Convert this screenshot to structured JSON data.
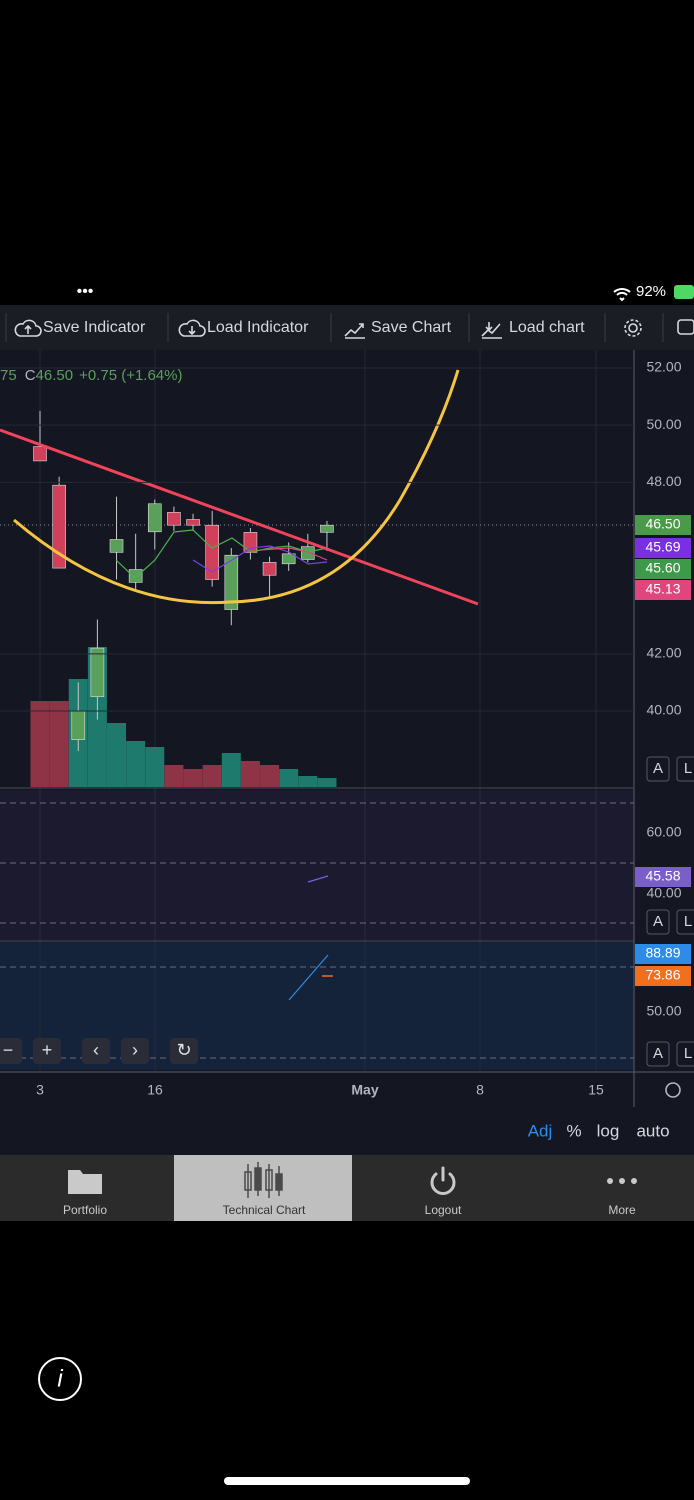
{
  "status_bar": {
    "dots": "•••",
    "battery": "92%"
  },
  "toolbar": [
    "Save Indicator",
    "Load Indicator",
    "Save Chart",
    "Load chart"
  ],
  "legend": {
    "prev": "75",
    "close_label": "C",
    "close": "46.50",
    "change": "+0.75 (+1.64%)"
  },
  "price_axis": {
    "ticks": [
      {
        "value": 52,
        "label": "52.00"
      },
      {
        "value": 50,
        "label": "50.00"
      },
      {
        "value": 48,
        "label": "48.00"
      },
      {
        "value": 42,
        "label": "42.00"
      },
      {
        "value": 40,
        "label": "40.00"
      }
    ],
    "badges": [
      "46.50",
      "45.69",
      "45.60",
      "45.13"
    ]
  },
  "candles": [
    {
      "open": 49.25,
      "high": 50.5,
      "low": 48.75,
      "close": 48.75
    },
    {
      "open": 47.9,
      "high": 48.2,
      "low": 45.0,
      "close": 45.0
    },
    {
      "open": 39.0,
      "high": 41.0,
      "low": 38.6,
      "close": 40.0
    },
    {
      "open": 40.5,
      "high": 43.2,
      "low": 39.7,
      "close": 42.2
    },
    {
      "open": 45.55,
      "high": 47.5,
      "low": 44.6,
      "close": 46.0
    },
    {
      "open": 44.5,
      "high": 46.2,
      "low": 44.25,
      "close": 44.95
    },
    {
      "open": 46.27,
      "high": 47.4,
      "low": 45.65,
      "close": 47.25
    },
    {
      "open": 46.95,
      "high": 47.15,
      "low": 46.3,
      "close": 46.5
    },
    {
      "open": 46.7,
      "high": 46.9,
      "low": 46.3,
      "close": 46.5
    },
    {
      "open": 46.5,
      "high": 47.0,
      "low": 44.35,
      "close": 44.6
    },
    {
      "open": 43.55,
      "high": 45.7,
      "low": 43.0,
      "close": 45.45
    },
    {
      "open": 46.25,
      "high": 46.4,
      "low": 45.3,
      "close": 45.55
    },
    {
      "open": 45.2,
      "high": 45.4,
      "low": 44.0,
      "close": 44.75
    },
    {
      "open": 45.15,
      "high": 45.9,
      "low": 44.9,
      "close": 45.5
    },
    {
      "open": 45.3,
      "high": 46.2,
      "low": 45.2,
      "close": 45.75
    },
    {
      "open": 46.25,
      "high": 46.65,
      "low": 45.6,
      "close": 46.5
    }
  ],
  "volume": [
    86,
    86,
    108,
    140,
    64,
    46,
    40,
    22,
    18,
    22,
    34,
    26,
    22,
    18,
    11,
    9
  ],
  "pane2": {
    "ticks": [
      "60.00",
      "40.00"
    ],
    "badge": "45.58"
  },
  "pane3": {
    "ticks": [
      "50.00"
    ],
    "badges": [
      "88.89",
      "73.86"
    ]
  },
  "scale_buttons": [
    "A",
    "L"
  ],
  "nav_buttons": [
    "−",
    "+",
    "‹",
    "›",
    "↻"
  ],
  "time_axis": [
    "3",
    "16",
    "May",
    "8",
    "15"
  ],
  "scale_options": [
    "Adj",
    "%",
    "log",
    "auto"
  ],
  "tabs": [
    "Portfolio",
    "Technical Chart",
    "Logout",
    "More"
  ],
  "info_icon": "i"
}
